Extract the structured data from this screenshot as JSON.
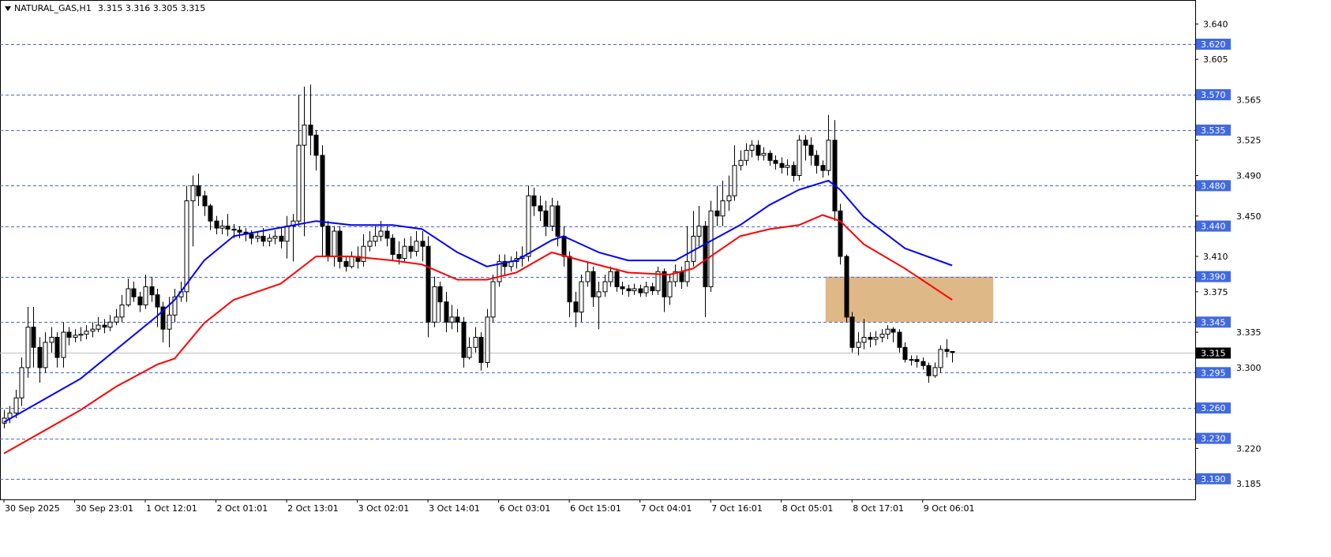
{
  "header": {
    "symbol": "NATURAL_GAS,H1",
    "ohlc_text": "3.315 3.316 3.305 3.315"
  },
  "chart_data": {
    "type": "candlestick",
    "symbol": "NATURAL_GAS",
    "timeframe": "H1",
    "ylim": [
      3.168,
      3.668
    ],
    "y_ticks": [
      "3.640",
      "3.605",
      "3.565",
      "3.525",
      "3.490",
      "3.450",
      "3.410",
      "3.375",
      "3.335",
      "3.300",
      "3.220",
      "3.185"
    ],
    "x_labels": [
      {
        "bar": 0,
        "label": "30 Sep 2025"
      },
      {
        "bar": 12,
        "label": "30 Sep 23:01"
      },
      {
        "bar": 24,
        "label": "1 Oct 12:01"
      },
      {
        "bar": 36,
        "label": "2 Oct 01:01"
      },
      {
        "bar": 48,
        "label": "2 Oct 13:01"
      },
      {
        "bar": 60,
        "label": "3 Oct 02:01"
      },
      {
        "bar": 72,
        "label": "3 Oct 14:01"
      },
      {
        "bar": 84,
        "label": "6 Oct 03:01"
      },
      {
        "bar": 96,
        "label": "6 Oct 15:01"
      },
      {
        "bar": 108,
        "label": "7 Oct 04:01"
      },
      {
        "bar": 120,
        "label": "7 Oct 16:01"
      },
      {
        "bar": 132,
        "label": "8 Oct 05:01"
      },
      {
        "bar": 144,
        "label": "8 Oct 17:01"
      },
      {
        "bar": 156,
        "label": "9 Oct 06:01"
      }
    ],
    "first_open": 3.245,
    "close": [
      3.25,
      3.255,
      3.27,
      3.3,
      3.34,
      3.32,
      3.3,
      3.325,
      3.33,
      3.31,
      3.335,
      3.33,
      3.332,
      3.333,
      3.336,
      3.338,
      3.342,
      3.34,
      3.345,
      3.35,
      3.362,
      3.378,
      3.37,
      3.362,
      3.38,
      3.372,
      3.36,
      3.338,
      3.352,
      3.37,
      3.375,
      3.465,
      3.48,
      3.47,
      3.46,
      3.445,
      3.438,
      3.44,
      3.437,
      3.436,
      3.434,
      3.432,
      3.428,
      3.43,
      3.425,
      3.428,
      3.43,
      3.425,
      3.44,
      3.445,
      3.52,
      3.54,
      3.53,
      3.51,
      3.44,
      3.41,
      3.435,
      3.405,
      3.4,
      3.41,
      3.405,
      3.42,
      3.425,
      3.43,
      3.435,
      3.428,
      3.412,
      3.408,
      3.42,
      3.415,
      3.425,
      3.42,
      3.345,
      3.38,
      3.365,
      3.345,
      3.35,
      3.345,
      3.31,
      3.32,
      3.33,
      3.305,
      3.35,
      3.385,
      3.405,
      3.4,
      3.405,
      3.408,
      3.41,
      3.47,
      3.46,
      3.455,
      3.44,
      3.46,
      3.43,
      3.41,
      3.365,
      3.355,
      3.385,
      3.395,
      3.37,
      3.375,
      3.385,
      3.395,
      3.38,
      3.378,
      3.376,
      3.378,
      3.374,
      3.38,
      3.376,
      3.395,
      3.37,
      3.385,
      3.395,
      3.385,
      3.405,
      3.43,
      3.44,
      3.38,
      3.455,
      3.45,
      3.465,
      3.47,
      3.5,
      3.505,
      3.515,
      3.52,
      3.51,
      3.512,
      3.505,
      3.502,
      3.498,
      3.5,
      3.49,
      3.525,
      3.52,
      3.51,
      3.5,
      3.495,
      3.525,
      3.455,
      3.41,
      3.35,
      3.32,
      3.325,
      3.33,
      3.328,
      3.33,
      3.333,
      3.338,
      3.335,
      3.32,
      3.308,
      3.308,
      3.306,
      3.302,
      3.292,
      3.3,
      3.318,
      3.316,
      3.315
    ],
    "high": [
      3.258,
      3.262,
      3.278,
      3.31,
      3.36,
      3.36,
      3.33,
      3.335,
      3.34,
      3.335,
      3.345,
      3.34,
      3.338,
      3.34,
      3.342,
      3.345,
      3.35,
      3.348,
      3.352,
      3.358,
      3.372,
      3.388,
      3.385,
      3.375,
      3.392,
      3.39,
      3.378,
      3.365,
      3.37,
      3.378,
      3.385,
      3.48,
      3.49,
      3.492,
      3.475,
      3.462,
      3.45,
      3.446,
      3.452,
      3.442,
      3.44,
      3.438,
      3.436,
      3.435,
      3.438,
      3.432,
      3.436,
      3.438,
      3.45,
      3.452,
      3.57,
      3.578,
      3.58,
      3.535,
      3.52,
      3.445,
      3.44,
      3.44,
      3.41,
      3.415,
      3.42,
      3.432,
      3.435,
      3.44,
      3.445,
      3.44,
      3.432,
      3.425,
      3.428,
      3.43,
      3.435,
      3.435,
      3.43,
      3.39,
      3.385,
      3.375,
      3.362,
      3.358,
      3.35,
      3.33,
      3.34,
      3.335,
      3.358,
      3.392,
      3.412,
      3.412,
      3.41,
      3.415,
      3.42,
      3.48,
      3.478,
      3.47,
      3.465,
      3.468,
      3.465,
      3.44,
      3.415,
      3.375,
      3.392,
      3.405,
      3.4,
      3.385,
      3.392,
      3.4,
      3.398,
      3.385,
      3.382,
      3.383,
      3.382,
      3.385,
      3.384,
      3.4,
      3.398,
      3.392,
      3.402,
      3.4,
      3.44,
      3.455,
      3.46,
      3.445,
      3.465,
      3.48,
      3.485,
      3.49,
      3.52,
      3.515,
      3.522,
      3.525,
      3.525,
      3.518,
      3.515,
      3.51,
      3.508,
      3.506,
      3.504,
      3.53,
      3.53,
      3.528,
      3.515,
      3.505,
      3.55,
      3.545,
      3.462,
      3.412,
      3.355,
      3.335,
      3.348,
      3.335,
      3.336,
      3.338,
      3.342,
      3.34,
      3.338,
      3.325,
      3.312,
      3.312,
      3.31,
      3.305,
      3.305,
      3.322,
      3.328,
      3.316
    ],
    "low": [
      3.24,
      3.245,
      3.25,
      3.262,
      3.29,
      3.3,
      3.285,
      3.295,
      3.315,
      3.3,
      3.3,
      3.322,
      3.325,
      3.326,
      3.328,
      3.33,
      3.335,
      3.334,
      3.336,
      3.342,
      3.345,
      3.36,
      3.365,
      3.355,
      3.358,
      3.365,
      3.34,
      3.325,
      3.32,
      3.345,
      3.365,
      3.365,
      3.42,
      3.46,
      3.45,
      3.436,
      3.432,
      3.432,
      3.43,
      3.428,
      3.428,
      3.425,
      3.422,
      3.424,
      3.42,
      3.42,
      3.422,
      3.418,
      3.408,
      3.405,
      3.44,
      3.43,
      3.51,
      3.495,
      3.41,
      3.405,
      3.4,
      3.398,
      3.395,
      3.398,
      3.398,
      3.4,
      3.415,
      3.42,
      3.425,
      3.42,
      3.405,
      3.402,
      3.404,
      3.408,
      3.41,
      3.405,
      3.33,
      3.34,
      3.345,
      3.335,
      3.338,
      3.335,
      3.3,
      3.308,
      3.315,
      3.297,
      3.3,
      3.345,
      3.38,
      3.392,
      3.395,
      3.398,
      3.4,
      3.405,
      3.45,
      3.445,
      3.43,
      3.435,
      3.42,
      3.4,
      3.35,
      3.34,
      3.345,
      3.38,
      3.36,
      3.338,
      3.37,
      3.38,
      3.375,
      3.372,
      3.37,
      3.372,
      3.37,
      3.37,
      3.372,
      3.372,
      3.355,
      3.362,
      3.38,
      3.378,
      3.38,
      3.4,
      3.42,
      3.35,
      3.375,
      3.44,
      3.44,
      3.455,
      3.465,
      3.495,
      3.5,
      3.508,
      3.505,
      3.505,
      3.5,
      3.496,
      3.492,
      3.49,
      3.484,
      3.485,
      3.505,
      3.5,
      3.492,
      3.488,
      3.49,
      3.445,
      3.402,
      3.345,
      3.315,
      3.312,
      3.318,
      3.32,
      3.322,
      3.325,
      3.328,
      3.325,
      3.315,
      3.305,
      3.302,
      3.3,
      3.298,
      3.285,
      3.29,
      3.295,
      3.31,
      3.305
    ],
    "moving_averages": [
      {
        "color": "#0000ff",
        "points": [
          [
            0,
            3.246
          ],
          [
            13,
            3.289
          ],
          [
            26,
            3.351
          ],
          [
            29,
            3.367
          ],
          [
            34,
            3.406
          ],
          [
            39,
            3.43
          ],
          [
            53,
            3.445
          ],
          [
            59,
            3.441
          ],
          [
            66,
            3.441
          ],
          [
            71,
            3.437
          ],
          [
            77,
            3.414
          ],
          [
            82,
            3.4
          ],
          [
            87,
            3.406
          ],
          [
            93,
            3.426
          ],
          [
            95,
            3.43
          ],
          [
            101,
            3.414
          ],
          [
            106,
            3.406
          ],
          [
            114,
            3.406
          ],
          [
            119,
            3.422
          ],
          [
            125,
            3.441
          ],
          [
            130,
            3.461
          ],
          [
            135,
            3.476
          ],
          [
            140,
            3.485
          ],
          [
            142,
            3.476
          ],
          [
            146,
            3.449
          ],
          [
            153,
            3.418
          ],
          [
            161,
            3.401
          ]
        ]
      },
      {
        "color": "#ff0000",
        "points": [
          [
            0,
            3.215
          ],
          [
            7,
            3.238
          ],
          [
            13,
            3.258
          ],
          [
            19,
            3.281
          ],
          [
            26,
            3.303
          ],
          [
            29,
            3.309
          ],
          [
            34,
            3.344
          ],
          [
            39,
            3.367
          ],
          [
            47,
            3.383
          ],
          [
            53,
            3.41
          ],
          [
            59,
            3.41
          ],
          [
            66,
            3.406
          ],
          [
            71,
            3.402
          ],
          [
            77,
            3.387
          ],
          [
            82,
            3.387
          ],
          [
            87,
            3.394
          ],
          [
            93,
            3.414
          ],
          [
            98,
            3.406
          ],
          [
            106,
            3.394
          ],
          [
            113,
            3.392
          ],
          [
            117,
            3.398
          ],
          [
            119,
            3.406
          ],
          [
            125,
            3.43
          ],
          [
            130,
            3.437
          ],
          [
            135,
            3.441
          ],
          [
            139,
            3.451
          ],
          [
            142,
            3.445
          ],
          [
            146,
            3.422
          ],
          [
            153,
            3.398
          ],
          [
            161,
            3.367
          ]
        ]
      }
    ],
    "levels": [
      "3.620",
      "3.570",
      "3.535",
      "3.480",
      "3.440",
      "3.390",
      "3.345",
      "3.295",
      "3.260",
      "3.230",
      "3.190"
    ],
    "level_color": "#4169e1",
    "current_price": "3.315",
    "zone": {
      "from_bar": 139.5,
      "to_bar": 168,
      "price_top": 3.39,
      "price_bottom": 3.345,
      "color": "#deb887"
    },
    "grid": false
  }
}
